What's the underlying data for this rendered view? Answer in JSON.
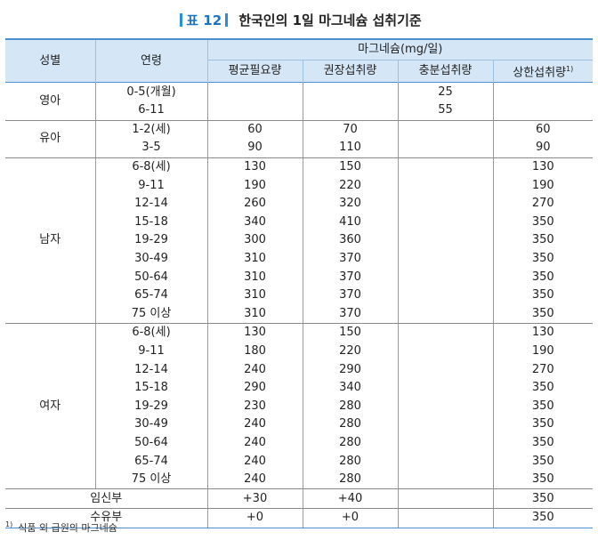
{
  "caption": {
    "label": "표 12",
    "title": "한국인의 1일 마그네슘 섭취기준"
  },
  "header": {
    "sex": "성별",
    "age": "연령",
    "group": "마그네슘(mg/일)",
    "cols": [
      "평균필요량",
      "권장섭취량",
      "충분섭취량",
      "상한섭취량"
    ],
    "footmark": "1)"
  },
  "groups": [
    {
      "sex": "영아",
      "rows": [
        {
          "age": "0-5(개월)",
          "vals": [
            "",
            "",
            "25",
            ""
          ]
        },
        {
          "age": "6-11",
          "vals": [
            "",
            "",
            "55",
            ""
          ]
        }
      ]
    },
    {
      "sex": "유아",
      "rows": [
        {
          "age": "1-2(세)",
          "vals": [
            "60",
            "70",
            "",
            "60"
          ]
        },
        {
          "age": "3-5",
          "vals": [
            "90",
            "110",
            "",
            "90"
          ]
        }
      ]
    },
    {
      "sex": "남자",
      "rows": [
        {
          "age": "6-8(세)",
          "vals": [
            "130",
            "150",
            "",
            "130"
          ]
        },
        {
          "age": "9-11",
          "vals": [
            "190",
            "220",
            "",
            "190"
          ]
        },
        {
          "age": "12-14",
          "vals": [
            "260",
            "320",
            "",
            "270"
          ]
        },
        {
          "age": "15-18",
          "vals": [
            "340",
            "410",
            "",
            "350"
          ]
        },
        {
          "age": "19-29",
          "vals": [
            "300",
            "360",
            "",
            "350"
          ]
        },
        {
          "age": "30-49",
          "vals": [
            "310",
            "370",
            "",
            "350"
          ]
        },
        {
          "age": "50-64",
          "vals": [
            "310",
            "370",
            "",
            "350"
          ]
        },
        {
          "age": "65-74",
          "vals": [
            "310",
            "370",
            "",
            "350"
          ]
        },
        {
          "age": "75 이상",
          "vals": [
            "310",
            "370",
            "",
            "350"
          ]
        }
      ]
    },
    {
      "sex": "여자",
      "rows": [
        {
          "age": "6-8(세)",
          "vals": [
            "130",
            "150",
            "",
            "130"
          ]
        },
        {
          "age": "9-11",
          "vals": [
            "180",
            "220",
            "",
            "190"
          ]
        },
        {
          "age": "12-14",
          "vals": [
            "240",
            "290",
            "",
            "270"
          ]
        },
        {
          "age": "15-18",
          "vals": [
            "290",
            "340",
            "",
            "350"
          ]
        },
        {
          "age": "19-29",
          "vals": [
            "230",
            "280",
            "",
            "350"
          ]
        },
        {
          "age": "30-49",
          "vals": [
            "240",
            "280",
            "",
            "350"
          ]
        },
        {
          "age": "50-64",
          "vals": [
            "240",
            "280",
            "",
            "350"
          ]
        },
        {
          "age": "65-74",
          "vals": [
            "240",
            "280",
            "",
            "350"
          ]
        },
        {
          "age": "75 이상",
          "vals": [
            "240",
            "280",
            "",
            "350"
          ]
        }
      ]
    }
  ],
  "extra": [
    {
      "label": "임신부",
      "vals": [
        "+30",
        "+40",
        "",
        "350"
      ]
    },
    {
      "label": "수유부",
      "vals": [
        "+0",
        "+0",
        "",
        "350"
      ]
    }
  ],
  "footnote": {
    "mark": "1)",
    "text": "식품 외 급원의 마그네슘"
  },
  "colors": {
    "accent": "#1e73be",
    "header_bg": "#d5e7f6",
    "rule": "#4b8fd0"
  }
}
